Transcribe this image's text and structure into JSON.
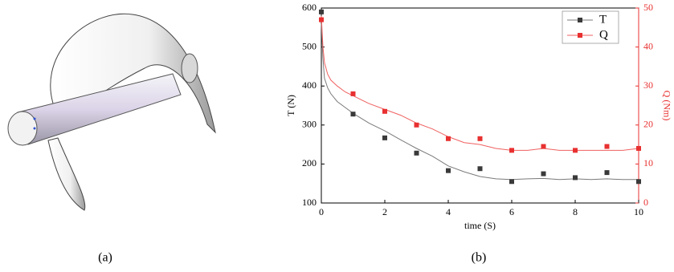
{
  "panels": {
    "a_label": "(a)",
    "b_label": "(b)"
  },
  "chart_data": {
    "type": "line",
    "x_label": "time (S)",
    "y_label": "T (N)",
    "y2_label": "Q (Nm)",
    "xlim": [
      0,
      10
    ],
    "xticks": [
      0,
      2,
      4,
      6,
      8,
      10
    ],
    "ylim": [
      100,
      600
    ],
    "yticks": [
      100,
      200,
      300,
      400,
      500,
      600
    ],
    "y2lim": [
      0,
      50
    ],
    "y2ticks": [
      0,
      10,
      20,
      30,
      40,
      50
    ],
    "legend": "top right",
    "x": [
      0,
      1,
      2,
      3,
      4,
      5,
      6,
      7,
      8,
      9,
      10
    ],
    "series": [
      {
        "name": "T",
        "color": "#3a3a3a",
        "line_color": "#7a7a7a",
        "axis": "y",
        "values": [
          590,
          328,
          267,
          228,
          183,
          188,
          155,
          175,
          165,
          178,
          155
        ],
        "line": {
          "x": [
            0,
            0.05,
            0.1,
            0.2,
            0.3,
            0.5,
            0.75,
            1,
            1.5,
            2,
            2.5,
            3,
            3.5,
            4,
            4.5,
            5,
            5.5,
            6,
            6.5,
            7,
            7.5,
            8,
            8.5,
            9,
            9.5,
            10
          ],
          "values": [
            560,
            470,
            420,
            395,
            380,
            360,
            345,
            330,
            305,
            285,
            262,
            240,
            220,
            195,
            180,
            168,
            162,
            160,
            162,
            163,
            160,
            162,
            160,
            162,
            160,
            160
          ]
        }
      },
      {
        "name": "Q",
        "color": "#e83030",
        "line_color": "#f06060",
        "axis": "y2",
        "values": [
          47,
          28,
          23.5,
          20,
          16.5,
          16.5,
          13.5,
          14.5,
          13.5,
          14.5,
          14
        ],
        "line": {
          "x": [
            0,
            0.05,
            0.1,
            0.2,
            0.3,
            0.5,
            0.75,
            1,
            1.5,
            2,
            2.5,
            3,
            3.5,
            4,
            4.5,
            5,
            5.5,
            6,
            6.5,
            7,
            7.5,
            8,
            8.5,
            9,
            9.5,
            10
          ],
          "values": [
            48,
            40,
            36,
            33,
            31.5,
            30,
            28.5,
            27.5,
            25.5,
            24,
            22.5,
            20.5,
            19,
            17,
            15.5,
            15,
            14,
            13.5,
            13.5,
            14,
            13.5,
            13.5,
            13.5,
            13.5,
            13.5,
            14
          ]
        }
      }
    ]
  }
}
